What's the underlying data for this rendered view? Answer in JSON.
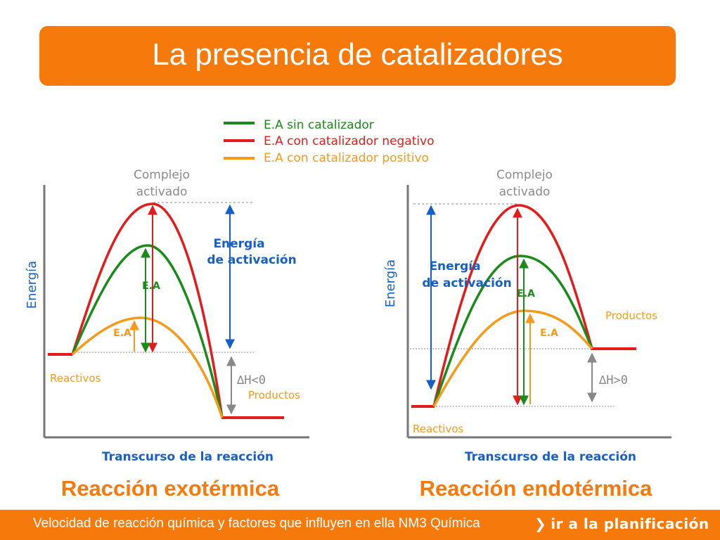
{
  "header": {
    "title": "La presencia de catalizadores"
  },
  "legend": {
    "items": [
      {
        "label": "E.A sin catalizador",
        "color": "#1a8a1a"
      },
      {
        "label": "E.A con catalizador negativo",
        "color": "#e31b1b"
      },
      {
        "label": "E.A con catalizador positivo",
        "color": "#f59a1a"
      }
    ]
  },
  "colors": {
    "accent": "#f6790b",
    "blue": "#1560c8",
    "axis": "#777777",
    "green": "#1a8a1a",
    "red": "#e31b1b",
    "orange": "#f59a1a"
  },
  "exo": {
    "complex_line1": "Complejo",
    "complex_line2": "activado",
    "energy_axis": "Energía",
    "activation_line1": "Energía",
    "activation_line2": "de activación",
    "ea_green": "E.A",
    "ea_orange": "E.A",
    "reactants": "Reactivos",
    "products": "Productos",
    "delta_h": "∆H<0",
    "x_axis": "Transcurso de la reacción",
    "caption": "Reacción exotérmica"
  },
  "endo": {
    "complex_line1": "Complejo",
    "complex_line2": "activado",
    "energy_axis": "Energía",
    "activation_line1": "Energía",
    "activation_line2": "de activación",
    "ea_green": "E.A",
    "ea_orange": "E.A",
    "reactants": "Reactivos",
    "products": "Productos",
    "delta_h": "∆H>0",
    "x_axis": "Transcurso de la reacción",
    "caption": "Reacción endotérmica"
  },
  "footer": {
    "text": "Velocidad de reacción química y factores que influyen en ella   NM3   Química",
    "link": "ir a la planificación"
  }
}
